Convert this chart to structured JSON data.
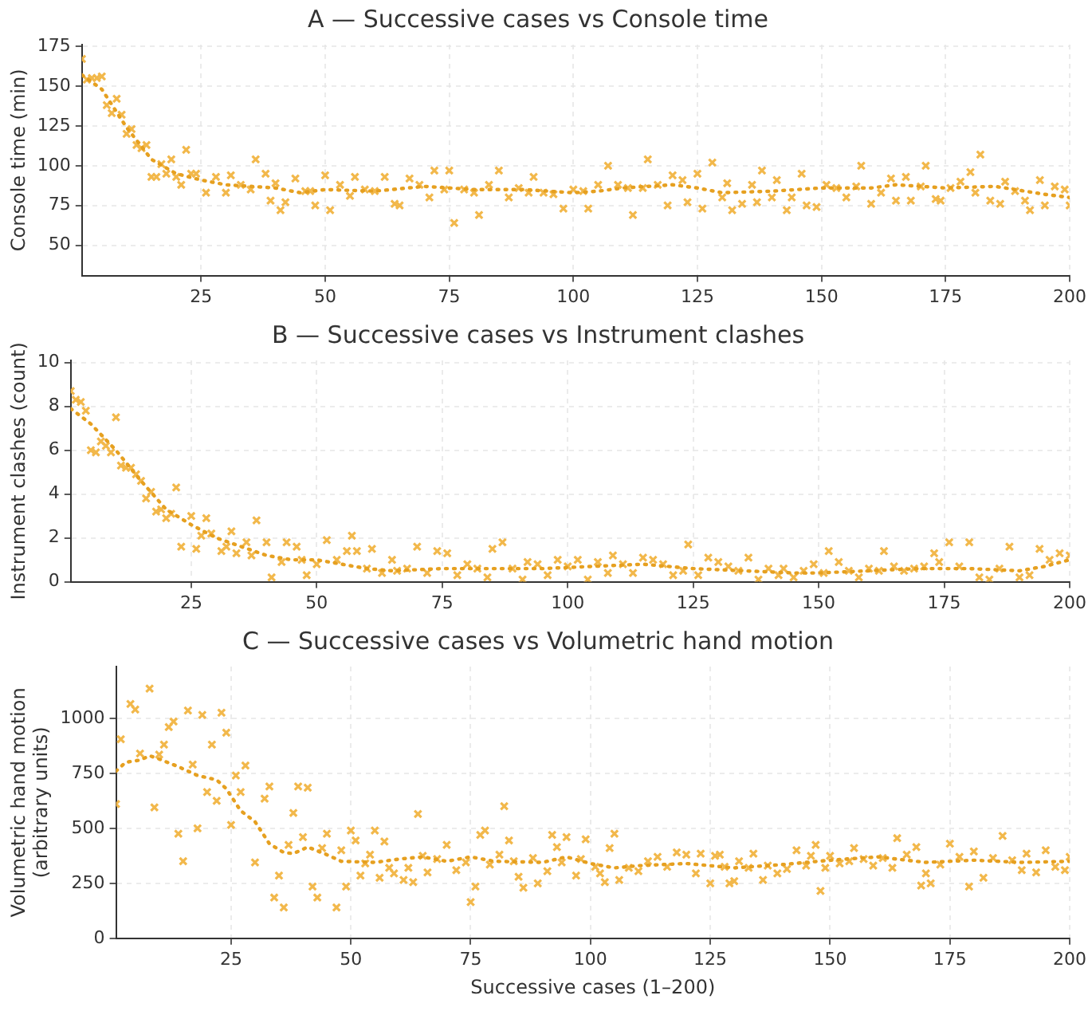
{
  "chart_data": [
    {
      "type": "scatter",
      "title": "A — Successive cases vs Console time",
      "ylabel": "Console time (min)",
      "xlim": [
        1,
        200
      ],
      "xticks": [
        25,
        50,
        75,
        100,
        125,
        150,
        175,
        200
      ],
      "ylim": [
        31,
        176
      ],
      "yticks": [
        50,
        75,
        100,
        125,
        150,
        175
      ],
      "grid": true,
      "legend": false,
      "series": [
        {
          "type": "scatter",
          "marker": "cross",
          "color": "#f2b84b",
          "x": [
            1,
            2,
            3,
            4,
            5,
            6,
            7,
            8,
            9,
            10,
            11,
            12,
            13,
            14,
            15,
            16,
            17,
            18,
            19,
            20,
            21,
            22,
            23,
            24,
            26,
            28,
            30,
            31,
            33,
            35,
            36,
            38,
            39,
            40,
            41,
            42,
            44,
            46,
            47,
            48,
            50,
            51,
            53,
            55,
            56,
            58,
            60,
            62,
            64,
            65,
            67,
            69,
            71,
            72,
            74,
            75,
            76,
            78,
            80,
            81,
            83,
            85,
            87,
            89,
            91,
            92,
            94,
            96,
            98,
            100,
            102,
            103,
            105,
            107,
            109,
            111,
            112,
            114,
            115,
            117,
            119,
            120,
            122,
            123,
            125,
            126,
            128,
            130,
            131,
            132,
            134,
            136,
            137,
            138,
            140,
            141,
            143,
            144,
            146,
            147,
            149,
            151,
            153,
            155,
            157,
            158,
            160,
            162,
            164,
            165,
            167,
            168,
            170,
            171,
            173,
            174,
            176,
            178,
            180,
            181,
            182,
            184,
            186,
            187,
            189,
            191,
            192,
            194,
            195,
            197,
            199,
            200
          ],
          "values": [
            167,
            154,
            155,
            155,
            156,
            138,
            133,
            142,
            132,
            120,
            123,
            113,
            111,
            113,
            93,
            93,
            101,
            95,
            104,
            93,
            88,
            110,
            95,
            95,
            83,
            93,
            83,
            94,
            88,
            85,
            104,
            95,
            78,
            89,
            72,
            77,
            92,
            84,
            84,
            75,
            94,
            72,
            88,
            81,
            93,
            85,
            84,
            93,
            76,
            75,
            92,
            88,
            80,
            97,
            85,
            97,
            64,
            85,
            83,
            69,
            88,
            97,
            80,
            86,
            83,
            93,
            83,
            82,
            73,
            85,
            84,
            73,
            88,
            100,
            88,
            86,
            69,
            86,
            104,
            88,
            75,
            94,
            91,
            77,
            95,
            73,
            102,
            80,
            89,
            72,
            76,
            88,
            77,
            97,
            80,
            91,
            72,
            80,
            95,
            75,
            74,
            88,
            86,
            80,
            87,
            100,
            76,
            83,
            92,
            78,
            93,
            78,
            87,
            100,
            79,
            78,
            86,
            90,
            96,
            83,
            107,
            78,
            76,
            90,
            84,
            78,
            72,
            91,
            75,
            87,
            85,
            75
          ]
        },
        {
          "type": "line",
          "marker": "none",
          "line_style": "dotted",
          "color": "#e6a020",
          "x": [
            1,
            5,
            10,
            15,
            20,
            25,
            30,
            40,
            45,
            50,
            60,
            70,
            80,
            90,
            100,
            105,
            110,
            120,
            125,
            130,
            140,
            150,
            160,
            165,
            175,
            185,
            195,
            200
          ],
          "values": [
            157,
            148,
            124,
            104,
            95,
            91,
            88,
            86,
            83,
            85,
            84,
            87,
            85,
            85,
            83,
            84,
            86,
            88,
            86,
            83,
            84,
            86,
            86,
            88,
            86,
            87,
            82,
            80
          ]
        }
      ]
    },
    {
      "type": "scatter",
      "title": "B — Successive cases vs Instrument clashes",
      "ylabel": "Instrument clashes (count)",
      "xlim": [
        1,
        200
      ],
      "xticks": [
        25,
        50,
        75,
        100,
        125,
        150,
        175,
        200
      ],
      "ylim": [
        0,
        10.1
      ],
      "yticks": [
        0,
        2,
        4,
        6,
        8,
        10
      ],
      "grid": true,
      "legend": false,
      "series": [
        {
          "type": "scatter",
          "marker": "cross",
          "color": "#f2b84b",
          "x": [
            1,
            2,
            3,
            4,
            5,
            6,
            7,
            8,
            9,
            10,
            11,
            12,
            13,
            14,
            15,
            16,
            17,
            18,
            19,
            20,
            21,
            22,
            23,
            25,
            26,
            27,
            28,
            29,
            31,
            32,
            33,
            34,
            36,
            37,
            38,
            40,
            41,
            43,
            44,
            46,
            47,
            48,
            50,
            52,
            54,
            56,
            57,
            58,
            60,
            61,
            63,
            65,
            66,
            68,
            70,
            72,
            74,
            76,
            78,
            80,
            82,
            84,
            85,
            87,
            89,
            91,
            92,
            94,
            96,
            98,
            100,
            102,
            104,
            106,
            108,
            109,
            111,
            113,
            115,
            117,
            119,
            121,
            123,
            124,
            126,
            128,
            130,
            132,
            134,
            136,
            138,
            140,
            142,
            143,
            145,
            147,
            149,
            151,
            152,
            154,
            156,
            158,
            160,
            162,
            163,
            165,
            167,
            169,
            171,
            173,
            174,
            176,
            178,
            180,
            182,
            184,
            186,
            188,
            190,
            192,
            194,
            196,
            198,
            200
          ],
          "values": [
            8.7,
            8.3,
            8.2,
            7.8,
            6.0,
            5.9,
            6.4,
            6.2,
            5.9,
            7.5,
            5.3,
            5.2,
            5.2,
            4.9,
            4.6,
            3.8,
            4.1,
            3.2,
            3.3,
            2.9,
            3.1,
            4.3,
            1.6,
            3.0,
            1.5,
            2.1,
            2.9,
            2.2,
            1.4,
            1.6,
            2.3,
            1.3,
            1.8,
            1.2,
            2.8,
            1.8,
            0.2,
            0.9,
            1.8,
            1.6,
            1.0,
            0.3,
            0.8,
            1.9,
            1.0,
            1.4,
            2.1,
            1.4,
            0.6,
            1.5,
            0.4,
            1.0,
            0.5,
            0.6,
            1.6,
            0.4,
            1.4,
            1.3,
            0.3,
            0.8,
            0.6,
            0.2,
            1.5,
            1.8,
            0.6,
            0.1,
            0.9,
            0.8,
            0.3,
            1.0,
            0.7,
            1.0,
            0.1,
            0.9,
            0.4,
            1.2,
            0.8,
            0.4,
            1.1,
            1.0,
            0.8,
            0.3,
            0.5,
            1.7,
            0.3,
            1.1,
            0.9,
            0.7,
            0.5,
            1.1,
            0.1,
            0.6,
            0.3,
            0.6,
            0.2,
            0.5,
            0.8,
            0.4,
            1.4,
            0.9,
            0.5,
            0.2,
            0.6,
            0.5,
            1.4,
            0.7,
            0.5,
            0.6,
            0.7,
            1.3,
            0.9,
            1.8,
            0.7,
            1.8,
            0.2,
            0.1,
            0.6,
            1.6,
            0.2,
            0.3,
            1.5,
            1.0,
            1.3,
            1.2
          ]
        },
        {
          "type": "line",
          "marker": "none",
          "line_style": "dotted",
          "color": "#e6a020",
          "x": [
            1,
            5,
            10,
            15,
            20,
            25,
            30,
            35,
            40,
            45,
            50,
            55,
            60,
            65,
            75,
            85,
            95,
            105,
            115,
            125,
            135,
            145,
            150,
            160,
            170,
            180,
            190,
            195,
            200
          ],
          "values": [
            7.9,
            7.2,
            6.0,
            4.6,
            3.3,
            2.6,
            2.0,
            1.6,
            1.2,
            1.0,
            1.0,
            0.8,
            0.6,
            0.5,
            0.6,
            0.6,
            0.6,
            0.7,
            0.8,
            0.6,
            0.5,
            0.4,
            0.4,
            0.5,
            0.6,
            0.6,
            0.5,
            0.7,
            1.0
          ]
        }
      ]
    },
    {
      "type": "scatter",
      "title": "C — Successive cases vs Volumetric hand motion",
      "xlabel": "Successive cases (1–200)",
      "ylabel": "Volumetric hand motion (arbitrary units)",
      "xlim": [
        1,
        200
      ],
      "xticks": [
        25,
        50,
        75,
        100,
        125,
        150,
        175,
        200
      ],
      "ylim": [
        0,
        1235
      ],
      "yticks": [
        0,
        250,
        500,
        750,
        1000
      ],
      "grid": true,
      "legend": false,
      "series": [
        {
          "type": "scatter",
          "marker": "cross",
          "color": "#f2b84b",
          "x": [
            1,
            2,
            4,
            5,
            6,
            8,
            9,
            10,
            11,
            12,
            13,
            14,
            15,
            16,
            17,
            18,
            19,
            20,
            21,
            22,
            23,
            24,
            25,
            26,
            27,
            28,
            30,
            32,
            33,
            34,
            35,
            36,
            37,
            38,
            39,
            40,
            41,
            42,
            43,
            44,
            45,
            47,
            48,
            49,
            50,
            51,
            52,
            53,
            54,
            55,
            56,
            57,
            58,
            59,
            61,
            62,
            63,
            64,
            65,
            66,
            68,
            70,
            72,
            74,
            75,
            76,
            77,
            78,
            79,
            81,
            82,
            83,
            84,
            85,
            86,
            88,
            89,
            91,
            92,
            93,
            94,
            95,
            97,
            98,
            99,
            101,
            102,
            103,
            104,
            105,
            106,
            108,
            110,
            112,
            114,
            116,
            118,
            120,
            122,
            123,
            125,
            126,
            127,
            128,
            129,
            130,
            131,
            133,
            134,
            136,
            137,
            139,
            141,
            143,
            145,
            146,
            147,
            148,
            149,
            150,
            152,
            154,
            155,
            157,
            159,
            161,
            163,
            164,
            166,
            168,
            169,
            170,
            171,
            173,
            175,
            177,
            179,
            180,
            182,
            184,
            186,
            188,
            190,
            191,
            193,
            195,
            197,
            199,
            200
          ],
          "values": [
            610,
            905,
            1065,
            1040,
            840,
            1135,
            595,
            835,
            880,
            960,
            985,
            475,
            350,
            1035,
            790,
            500,
            1015,
            665,
            880,
            625,
            1025,
            935,
            515,
            740,
            665,
            785,
            345,
            635,
            690,
            185,
            285,
            140,
            425,
            570,
            690,
            460,
            685,
            235,
            185,
            410,
            475,
            140,
            400,
            235,
            490,
            445,
            285,
            340,
            380,
            490,
            275,
            440,
            320,
            295,
            265,
            320,
            255,
            565,
            375,
            300,
            360,
            425,
            310,
            345,
            165,
            235,
            470,
            490,
            335,
            380,
            600,
            445,
            350,
            280,
            230,
            365,
            250,
            305,
            470,
            415,
            345,
            460,
            285,
            360,
            450,
            325,
            295,
            255,
            410,
            475,
            265,
            320,
            305,
            350,
            370,
            325,
            390,
            380,
            295,
            385,
            250,
            375,
            380,
            325,
            250,
            260,
            350,
            320,
            385,
            265,
            330,
            295,
            315,
            400,
            330,
            375,
            425,
            215,
            320,
            375,
            340,
            350,
            410,
            360,
            330,
            365,
            320,
            455,
            380,
            415,
            240,
            295,
            250,
            335,
            430,
            370,
            235,
            395,
            275,
            365,
            465,
            355,
            310,
            385,
            300,
            400,
            325,
            310,
            370
          ]
        },
        {
          "type": "line",
          "marker": "none",
          "line_style": "dotted",
          "color": "#e6a020",
          "x": [
            1,
            3,
            6,
            8,
            10,
            14,
            18,
            22,
            24,
            27,
            30,
            33,
            36,
            38,
            41,
            45,
            48,
            55,
            60,
            65,
            70,
            75,
            80,
            90,
            95,
            100,
            105,
            110,
            120,
            125,
            130,
            140,
            150,
            160,
            170,
            180,
            190,
            200
          ],
          "values": [
            760,
            800,
            810,
            830,
            815,
            780,
            740,
            720,
            680,
            580,
            530,
            430,
            390,
            385,
            415,
            380,
            350,
            345,
            360,
            370,
            350,
            370,
            350,
            345,
            370,
            340,
            320,
            330,
            340,
            330,
            320,
            335,
            355,
            370,
            345,
            355,
            345,
            350
          ]
        }
      ]
    }
  ]
}
